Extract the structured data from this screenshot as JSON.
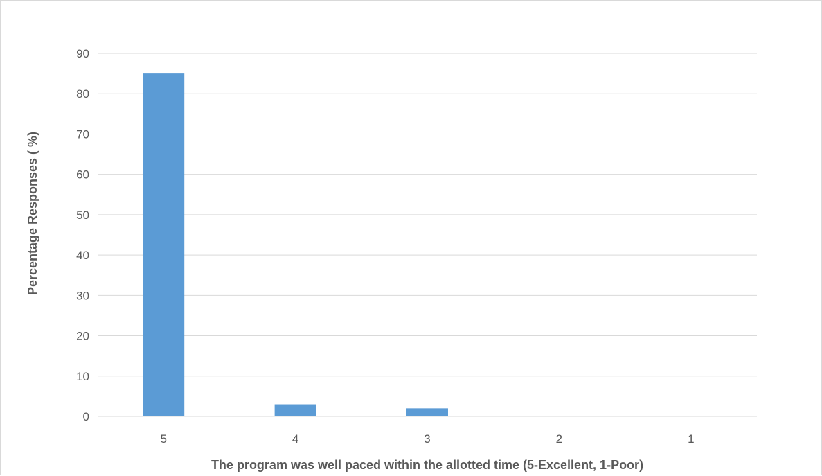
{
  "chart_data": {
    "type": "bar",
    "categories": [
      "5",
      "4",
      "3",
      "2",
      "1"
    ],
    "values": [
      85,
      3,
      2,
      0,
      0
    ],
    "title": "",
    "xlabel": "The program was well paced within the allotted time (5-Excellent, 1-Poor)",
    "ylabel": "Percentage Responses ( %)",
    "ylim": [
      0,
      90
    ],
    "yticks": [
      0,
      10,
      20,
      30,
      40,
      50,
      60,
      70,
      80,
      90
    ],
    "grid": true,
    "legend": "none",
    "bar_color": "#5b9bd5",
    "grid_color": "#d9d9d9"
  }
}
